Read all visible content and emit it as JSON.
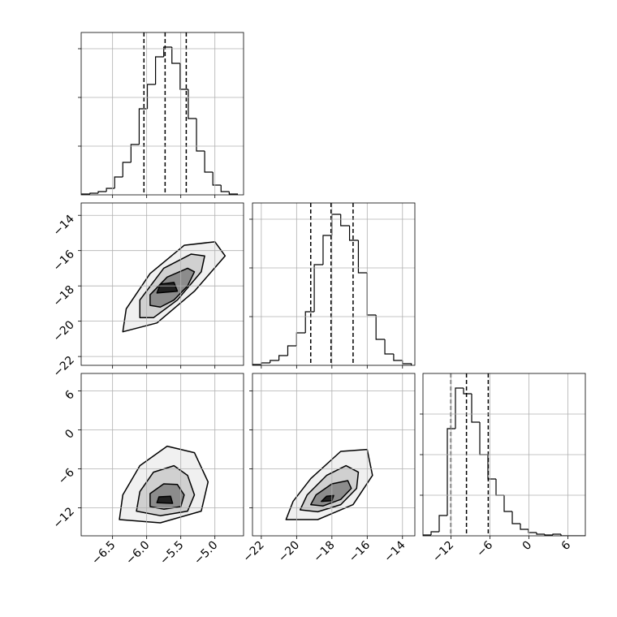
{
  "chart_data": {
    "type": "corner",
    "grid": true,
    "variables": [
      {
        "lim": [
          -6.96,
          -4.58
        ],
        "ticks": [
          {
            "value": -6.5,
            "label": "−6.5"
          },
          {
            "value": -6.0,
            "label": "−6.0"
          },
          {
            "value": -5.5,
            "label": "−5.5"
          },
          {
            "value": -5.0,
            "label": "−5.0"
          }
        ]
      },
      {
        "lim": [
          -22.5,
          -13.3
        ],
        "ticks": [
          {
            "value": -22,
            "label": "−22"
          },
          {
            "value": -20,
            "label": "−20"
          },
          {
            "value": -18,
            "label": "−18"
          },
          {
            "value": -16,
            "label": "−16"
          },
          {
            "value": -14,
            "label": "−14"
          }
        ]
      },
      {
        "lim": [
          -16.3,
          8.7
        ],
        "ticks": [
          {
            "value": -12,
            "label": "−12"
          },
          {
            "value": -6,
            "label": "−6"
          },
          0,
          6
        ]
      }
    ],
    "histograms": [
      {
        "bins": [
          -6.95,
          -6.83,
          -6.71,
          -6.59,
          -6.47,
          -6.35,
          -6.23,
          -6.11,
          -5.99,
          -5.87,
          -5.75,
          -5.63,
          -5.51,
          -5.39,
          -5.27,
          -5.15,
          -5.03,
          -4.91,
          -4.79,
          -4.67
        ],
        "counts": [
          0.5,
          1,
          2,
          4,
          11,
          20,
          31,
          53,
          68,
          85,
          91,
          81,
          65,
          47,
          27,
          14,
          6,
          2,
          0.5
        ],
        "ylim": [
          0,
          100
        ],
        "yticks": [
          30,
          60,
          90
        ],
        "quantiles": [
          -6.04,
          -5.73,
          -5.42
        ]
      },
      {
        "bins": [
          -22.5,
          -22,
          -21.5,
          -21,
          -20.5,
          -20,
          -19.5,
          -19,
          -18.5,
          -18,
          -17.5,
          -17,
          -16.5,
          -16,
          -15.5,
          -15,
          -14.5,
          -14,
          -13.5
        ],
        "counts": [
          0.5,
          1.5,
          3,
          6,
          12,
          20,
          33,
          62,
          80,
          93,
          86,
          77,
          57,
          31,
          16,
          7,
          3,
          1
        ],
        "ylim": [
          0,
          100
        ],
        "yticks": [
          30,
          60,
          90
        ],
        "quantiles": [
          -19.2,
          -18.05,
          -16.8
        ]
      },
      {
        "bins": [
          -16.3,
          -15.05,
          -13.8,
          -12.55,
          -11.3,
          -10.05,
          -8.8,
          -7.55,
          -6.3,
          -5.05,
          -3.8,
          -2.55,
          -1.3,
          -0.05,
          1.2,
          2.45,
          3.7,
          4.95,
          6.2,
          7.45,
          8.7
        ],
        "counts": [
          0.5,
          2.5,
          12.5,
          66,
          91,
          87.5,
          70,
          50,
          35,
          25,
          15,
          7.5,
          4,
          2,
          1,
          0.5,
          1,
          0,
          0,
          0
        ],
        "ylim": [
          0,
          100
        ],
        "yticks": [
          25,
          50,
          75
        ],
        "quantiles": [
          -12.0,
          -9.6,
          -6.25
        ]
      }
    ],
    "pairs": [
      {
        "xvar": 0,
        "yvar": 1,
        "contours": [
          {
            "x": [
              -6.35,
              -6.3,
              -5.95,
              -5.45,
              -5.0,
              -4.85,
              -5.3,
              -5.85
            ],
            "y": [
              -20.6,
              -19.3,
              -17.3,
              -15.7,
              -15.5,
              -16.3,
              -18.3,
              -20.1
            ]
          },
          {
            "x": [
              -6.1,
              -6.1,
              -5.75,
              -5.35,
              -5.15,
              -5.2,
              -5.55,
              -5.9
            ],
            "y": [
              -19.8,
              -18.8,
              -17.0,
              -16.2,
              -16.3,
              -17.2,
              -18.8,
              -19.8
            ]
          },
          {
            "x": [
              -5.95,
              -5.95,
              -5.7,
              -5.4,
              -5.3,
              -5.4,
              -5.6,
              -5.8
            ],
            "y": [
              -19.1,
              -18.5,
              -17.5,
              -17.0,
              -17.2,
              -18.0,
              -18.8,
              -19.2
            ]
          },
          {
            "x": [
              -5.85,
              -5.8,
              -5.6,
              -5.55
            ],
            "y": [
              -18.4,
              -17.9,
              -17.8,
              -18.3
            ]
          }
        ]
      },
      {
        "xvar": 0,
        "yvar": 2,
        "contours": [
          {
            "x": [
              -6.4,
              -6.35,
              -6.1,
              -5.7,
              -5.3,
              -5.1,
              -5.2,
              -5.8
            ],
            "y": [
              -13.8,
              -10,
              -5.5,
              -2.5,
              -3.5,
              -8,
              -12.5,
              -14.3
            ]
          },
          {
            "x": [
              -6.15,
              -6.1,
              -5.9,
              -5.6,
              -5.4,
              -5.3,
              -5.4,
              -5.8
            ],
            "y": [
              -12.5,
              -9.5,
              -6.5,
              -5.5,
              -7,
              -10,
              -12.5,
              -13.2
            ]
          },
          {
            "x": [
              -5.95,
              -5.95,
              -5.75,
              -5.55,
              -5.45,
              -5.5,
              -5.75
            ],
            "y": [
              -11.8,
              -9.8,
              -8.3,
              -8.4,
              -10,
              -11.8,
              -12.2
            ]
          },
          {
            "x": [
              -5.85,
              -5.82,
              -5.65,
              -5.62
            ],
            "y": [
              -11.2,
              -10.3,
              -10.2,
              -11.3
            ]
          }
        ]
      },
      {
        "xvar": 1,
        "yvar": 2,
        "contours": [
          {
            "x": [
              -20.6,
              -20.2,
              -19.2,
              -17.5,
              -16.0,
              -15.7,
              -16.8,
              -18.8
            ],
            "y": [
              -13.8,
              -11,
              -7.5,
              -3.3,
              -3.0,
              -7,
              -11.5,
              -13.8
            ]
          },
          {
            "x": [
              -19.8,
              -19.4,
              -18.3,
              -17.2,
              -16.5,
              -16.6,
              -17.5,
              -18.8
            ],
            "y": [
              -12.3,
              -10,
              -7,
              -5.5,
              -6.5,
              -9,
              -11.5,
              -12.6
            ]
          },
          {
            "x": [
              -19.2,
              -18.9,
              -18,
              -17.1,
              -16.9,
              -17.5,
              -18.5
            ],
            "y": [
              -11.5,
              -10,
              -8.3,
              -7.8,
              -9,
              -10.7,
              -11.7
            ]
          },
          {
            "x": [
              -18.6,
              -18.3,
              -17.9,
              -18.0
            ],
            "y": [
              -11,
              -10.2,
              -10.1,
              -10.9
            ]
          }
        ]
      }
    ]
  }
}
